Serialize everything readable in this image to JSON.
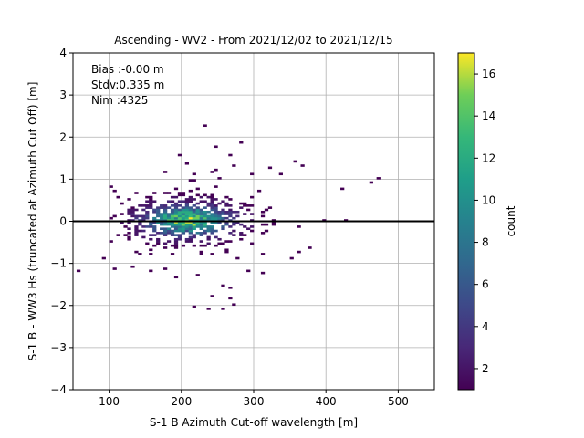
{
  "chart_data": {
    "type": "heatmap",
    "title": "Ascending - WV2 - From 2021/12/02 to 2021/12/15",
    "xlabel": "S-1 B Azimuth Cut-off wavelength [m]",
    "ylabel": "S-1 B - WW3 Hs (truncated at Azimuth Cut Off) [m]",
    "xlim": [
      50,
      550
    ],
    "ylim": [
      -4,
      4
    ],
    "xticks": [
      100,
      200,
      300,
      400,
      500
    ],
    "yticks": [
      -4,
      -3,
      -2,
      -1,
      0,
      1,
      2,
      3,
      4
    ],
    "grid": true,
    "reference_line_y": 0,
    "annotation": [
      "Bias :-0.00 m",
      "Stdv:0.335 m",
      "Nim :4325"
    ],
    "colorbar": {
      "label": "count",
      "min": 1,
      "max": 17,
      "ticks": [
        2,
        4,
        6,
        8,
        10,
        12,
        14,
        16
      ],
      "colormap": "viridis"
    },
    "bin_width": [
      5,
      0.05
    ],
    "histogram": {
      "stats": {
        "bias": -0.0,
        "stdv": 0.335,
        "n": 4325
      },
      "core": {
        "x_center": 205,
        "x_sigma": 52,
        "y_sigma": 0.32,
        "peak_count": 17
      },
      "sparse_points": [
        [
          55,
          -1.2
        ],
        [
          100,
          0.8
        ],
        [
          92,
          -0.9
        ],
        [
          105,
          -1.15
        ],
        [
          133,
          -1.1
        ],
        [
          158,
          -1.2
        ],
        [
          175,
          -1.15
        ],
        [
          192,
          -1.35
        ],
        [
          220,
          -1.3
        ],
        [
          230,
          2.25
        ],
        [
          215,
          -2.05
        ],
        [
          235,
          -2.1
        ],
        [
          255,
          -2.1
        ],
        [
          240,
          -1.8
        ],
        [
          255,
          -1.55
        ],
        [
          265,
          -1.85
        ],
        [
          270,
          -2.0
        ],
        [
          268,
          -1.6
        ],
        [
          292,
          -1.2
        ],
        [
          310,
          -1.25
        ],
        [
          350,
          -0.9
        ],
        [
          360,
          -0.75
        ],
        [
          378,
          -0.65
        ],
        [
          395,
          0.0
        ],
        [
          428,
          0.0
        ],
        [
          470,
          1.0
        ],
        [
          460,
          0.9
        ],
        [
          420,
          0.75
        ],
        [
          368,
          1.3
        ],
        [
          358,
          1.45
        ],
        [
          338,
          1.15
        ],
        [
          322,
          1.25
        ],
        [
          268,
          1.55
        ],
        [
          248,
          1.75
        ],
        [
          240,
          1.2
        ],
        [
          196,
          1.55
        ],
        [
          205,
          1.35
        ],
        [
          175,
          1.2
        ],
        [
          215,
          1.15
        ],
        [
          283,
          1.85
        ],
        [
          272,
          1.3
        ],
        [
          298,
          1.1
        ]
      ]
    }
  }
}
